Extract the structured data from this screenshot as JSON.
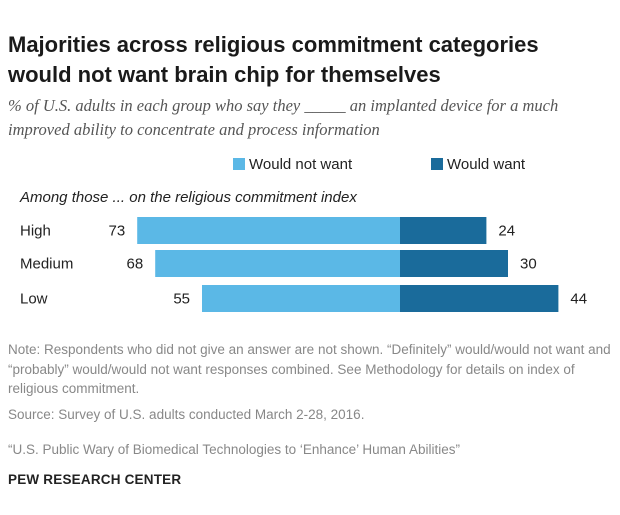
{
  "title": "Majorities across religious commitment categories would not want brain chip for themselves",
  "subtitle": "% of U.S. adults in each group who say they _____ an implanted device for a much improved ability to concentrate and process information",
  "note": "Note: Respondents who did not give an answer are not shown. “Definitely” would/would not want and “probably” would/would not want responses combined. See Methodology for details on index of religious commitment.",
  "source": "Source: Survey of U.S. adults conducted March 2-28, 2016.",
  "report": "“U.S. Public Wary of Biomedical Technologies to ‘Enhance’ Human Abilities”",
  "organization": "PEW RESEARCH CENTER",
  "chart_data": {
    "type": "bar",
    "orientation": "diverging-horizontal",
    "group_heading": "Among those ... on the religious commitment index",
    "categories": [
      "High",
      "Medium",
      "Low"
    ],
    "series": [
      {
        "name": "Would not want",
        "values": [
          73,
          68,
          55
        ],
        "color": "#5bb8e6"
      },
      {
        "name": "Would want",
        "values": [
          24,
          30,
          44
        ],
        "color": "#1a6b9b"
      }
    ],
    "legend_position": "top",
    "grid": false
  }
}
